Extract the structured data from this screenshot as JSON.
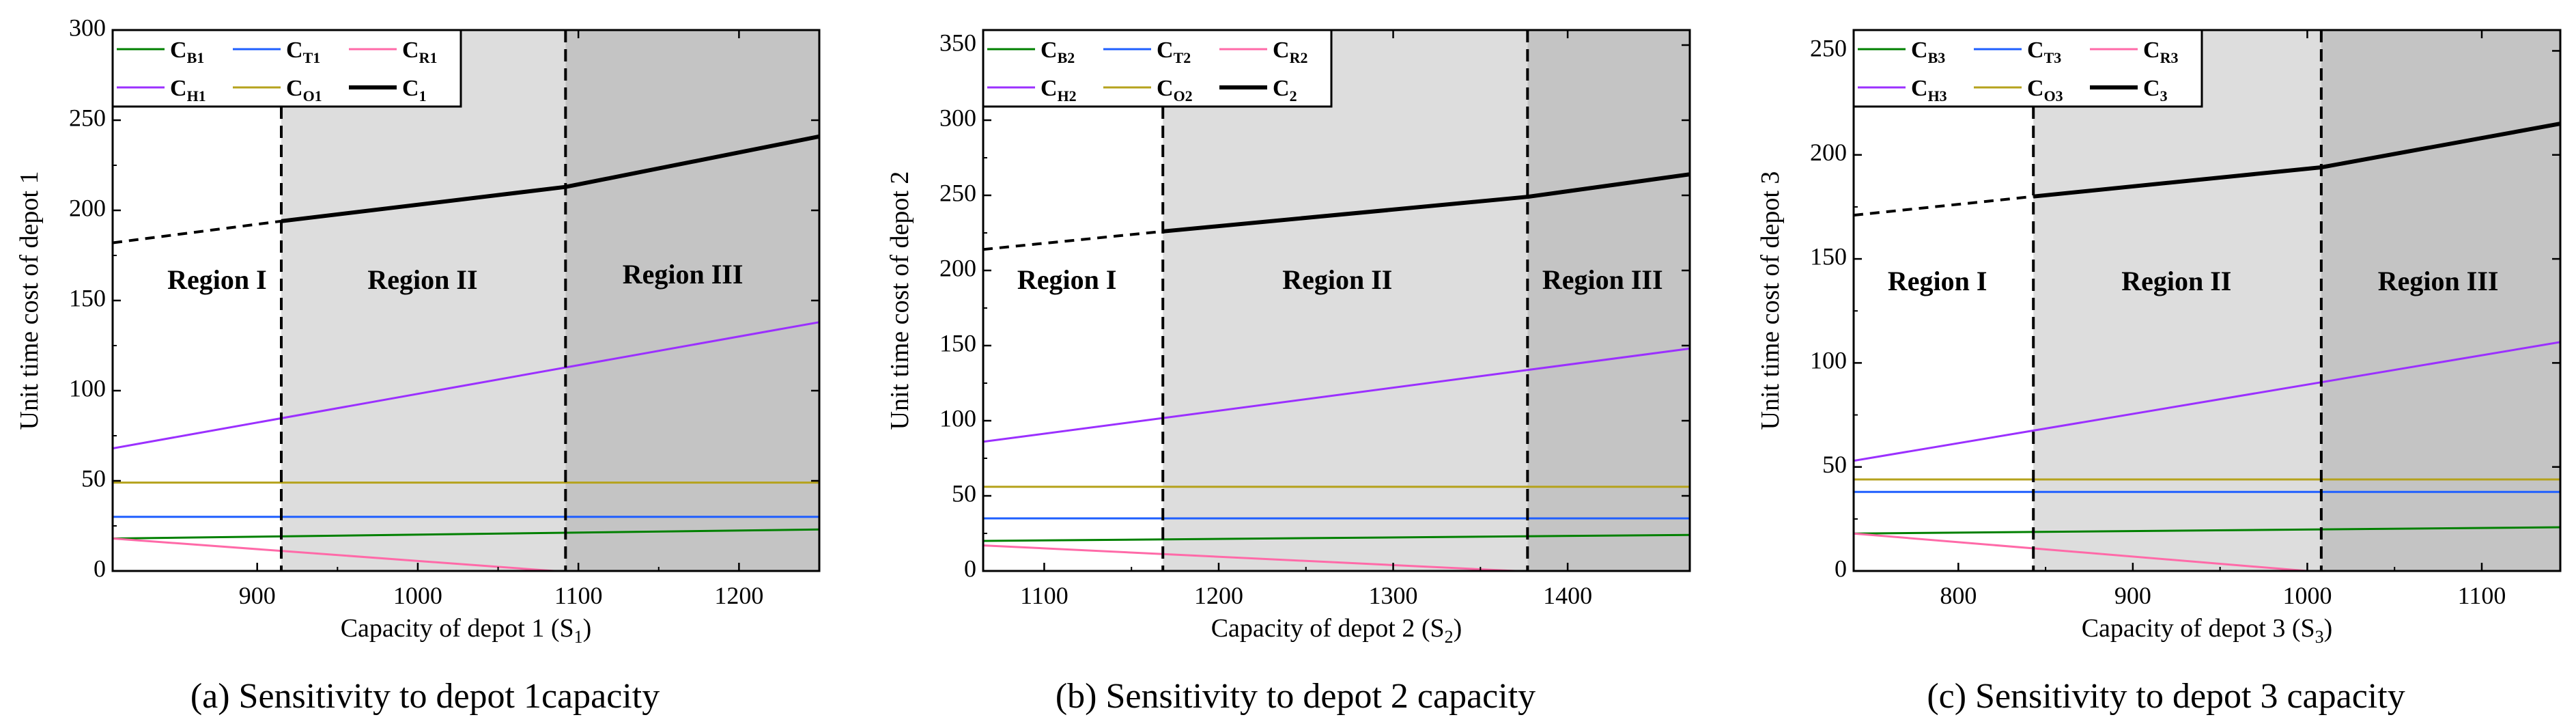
{
  "colors": {
    "C_B": "#008000",
    "C_T": "#1f5fff",
    "C_R": "#ff6aa8",
    "C_H": "#9b30ff",
    "C_O": "#b5a21c",
    "C": "#000000",
    "region_II_fill": "#dddddd",
    "region_III_fill": "#c4c4c4"
  },
  "chart_data": [
    {
      "type": "line",
      "caption": "(a) Sensitivity to depot 1capacity",
      "xlabel": "Capacity of depot 1 (S",
      "xlabel_sub": "1",
      "xlabel_end": ")",
      "ylabel": "Unit time cost of depot 1",
      "xlim": [
        810,
        1250
      ],
      "ylim": [
        0,
        300
      ],
      "xticks": [
        900,
        1000,
        1100,
        1200
      ],
      "yticks": [
        0,
        50,
        100,
        150,
        200,
        250,
        300
      ],
      "boundaries": [
        915,
        1092
      ],
      "regions": [
        {
          "label": "Region I",
          "x": 875,
          "y": 160
        },
        {
          "label": "Region II",
          "x": 1003,
          "y": 160
        },
        {
          "label": "Region III",
          "x": 1165,
          "y": 163
        }
      ],
      "legend": [
        {
          "key": "C_B",
          "main": "C",
          "sub": "B1"
        },
        {
          "key": "C_T",
          "main": "C",
          "sub": "T1"
        },
        {
          "key": "C_R",
          "main": "C",
          "sub": "R1"
        },
        {
          "key": "C_H",
          "main": "C",
          "sub": "H1"
        },
        {
          "key": "C_O",
          "main": "C",
          "sub": "O1"
        },
        {
          "key": "C",
          "main": "C",
          "sub": "1"
        }
      ],
      "series": [
        {
          "key": "C_B",
          "points": [
            [
              810,
              18
            ],
            [
              1250,
              23
            ]
          ]
        },
        {
          "key": "C_T",
          "points": [
            [
              810,
              30
            ],
            [
              1250,
              30
            ]
          ]
        },
        {
          "key": "C_R",
          "points": [
            [
              810,
              18
            ],
            [
              1085,
              0
            ],
            [
              1250,
              0
            ]
          ]
        },
        {
          "key": "C_H",
          "points": [
            [
              810,
              68
            ],
            [
              1250,
              138
            ]
          ]
        },
        {
          "key": "C_O",
          "points": [
            [
              810,
              49
            ],
            [
              1250,
              49
            ]
          ]
        },
        {
          "key": "C",
          "points": [
            [
              915,
              194
            ],
            [
              1092,
              213
            ],
            [
              1250,
              241
            ]
          ],
          "dashed_part": [
            [
              810,
              182
            ],
            [
              915,
              194
            ]
          ]
        }
      ]
    },
    {
      "type": "line",
      "caption": "(b) Sensitivity to depot 2 capacity",
      "xlabel": "Capacity of depot 2 (S",
      "xlabel_sub": "2",
      "xlabel_end": ")",
      "ylabel": "Unit time cost of depot 2",
      "xlim": [
        1065,
        1470
      ],
      "ylim": [
        0,
        360
      ],
      "xticks": [
        1100,
        1200,
        1300,
        1400
      ],
      "yticks": [
        0,
        50,
        100,
        150,
        200,
        250,
        300,
        350
      ],
      "boundaries": [
        1168,
        1377
      ],
      "regions": [
        {
          "label": "Region I",
          "x": 1113,
          "y": 192
        },
        {
          "label": "Region II",
          "x": 1268,
          "y": 192
        },
        {
          "label": "Region III",
          "x": 1420,
          "y": 192
        }
      ],
      "legend": [
        {
          "key": "C_B",
          "main": "C",
          "sub": "B2"
        },
        {
          "key": "C_T",
          "main": "C",
          "sub": "T2"
        },
        {
          "key": "C_R",
          "main": "C",
          "sub": "R2"
        },
        {
          "key": "C_H",
          "main": "C",
          "sub": "H2"
        },
        {
          "key": "C_O",
          "main": "C",
          "sub": "O2"
        },
        {
          "key": "C",
          "main": "C",
          "sub": "2"
        }
      ],
      "series": [
        {
          "key": "C_B",
          "points": [
            [
              1065,
              20
            ],
            [
              1470,
              24
            ]
          ]
        },
        {
          "key": "C_T",
          "points": [
            [
              1065,
              35
            ],
            [
              1470,
              35
            ]
          ]
        },
        {
          "key": "C_R",
          "points": [
            [
              1065,
              17
            ],
            [
              1370,
              0
            ],
            [
              1470,
              0
            ]
          ]
        },
        {
          "key": "C_H",
          "points": [
            [
              1065,
              86
            ],
            [
              1470,
              148
            ]
          ]
        },
        {
          "key": "C_O",
          "points": [
            [
              1065,
              56
            ],
            [
              1470,
              56
            ]
          ]
        },
        {
          "key": "C",
          "points": [
            [
              1168,
              226
            ],
            [
              1377,
              249
            ],
            [
              1470,
              264
            ]
          ],
          "dashed_part": [
            [
              1065,
              214
            ],
            [
              1168,
              226
            ]
          ]
        }
      ]
    },
    {
      "type": "line",
      "caption": "(c) Sensitivity to depot 3 capacity",
      "xlabel": "Capacity of depot 3 (S",
      "xlabel_sub": "3",
      "xlabel_end": ")",
      "ylabel": "Unit time cost of depot 3",
      "xlim": [
        740,
        1145
      ],
      "ylim": [
        0,
        260
      ],
      "xticks": [
        800,
        900,
        1000,
        1100
      ],
      "yticks": [
        0,
        50,
        100,
        150,
        200,
        250
      ],
      "boundaries": [
        843,
        1008
      ],
      "regions": [
        {
          "label": "Region I",
          "x": 788,
          "y": 138
        },
        {
          "label": "Region II",
          "x": 925,
          "y": 138
        },
        {
          "label": "Region III",
          "x": 1075,
          "y": 138
        }
      ],
      "legend": [
        {
          "key": "C_B",
          "main": "C",
          "sub": "B3"
        },
        {
          "key": "C_T",
          "main": "C",
          "sub": "T3"
        },
        {
          "key": "C_R",
          "main": "C",
          "sub": "R3"
        },
        {
          "key": "C_H",
          "main": "C",
          "sub": "H3"
        },
        {
          "key": "C_O",
          "main": "C",
          "sub": "O3"
        },
        {
          "key": "C",
          "main": "C",
          "sub": "3"
        }
      ],
      "series": [
        {
          "key": "C_B",
          "points": [
            [
              740,
              18
            ],
            [
              1145,
              21
            ]
          ]
        },
        {
          "key": "C_T",
          "points": [
            [
              740,
              38
            ],
            [
              1145,
              38
            ]
          ]
        },
        {
          "key": "C_R",
          "points": [
            [
              740,
              18
            ],
            [
              1000,
              0
            ],
            [
              1145,
              0
            ]
          ]
        },
        {
          "key": "C_H",
          "points": [
            [
              740,
              53
            ],
            [
              1145,
              110
            ]
          ]
        },
        {
          "key": "C_O",
          "points": [
            [
              740,
              44
            ],
            [
              1145,
              44
            ]
          ]
        },
        {
          "key": "C",
          "points": [
            [
              843,
              180
            ],
            [
              1008,
              194
            ],
            [
              1145,
              215
            ]
          ],
          "dashed_part": [
            [
              740,
              171
            ],
            [
              843,
              180
            ]
          ]
        }
      ]
    }
  ]
}
